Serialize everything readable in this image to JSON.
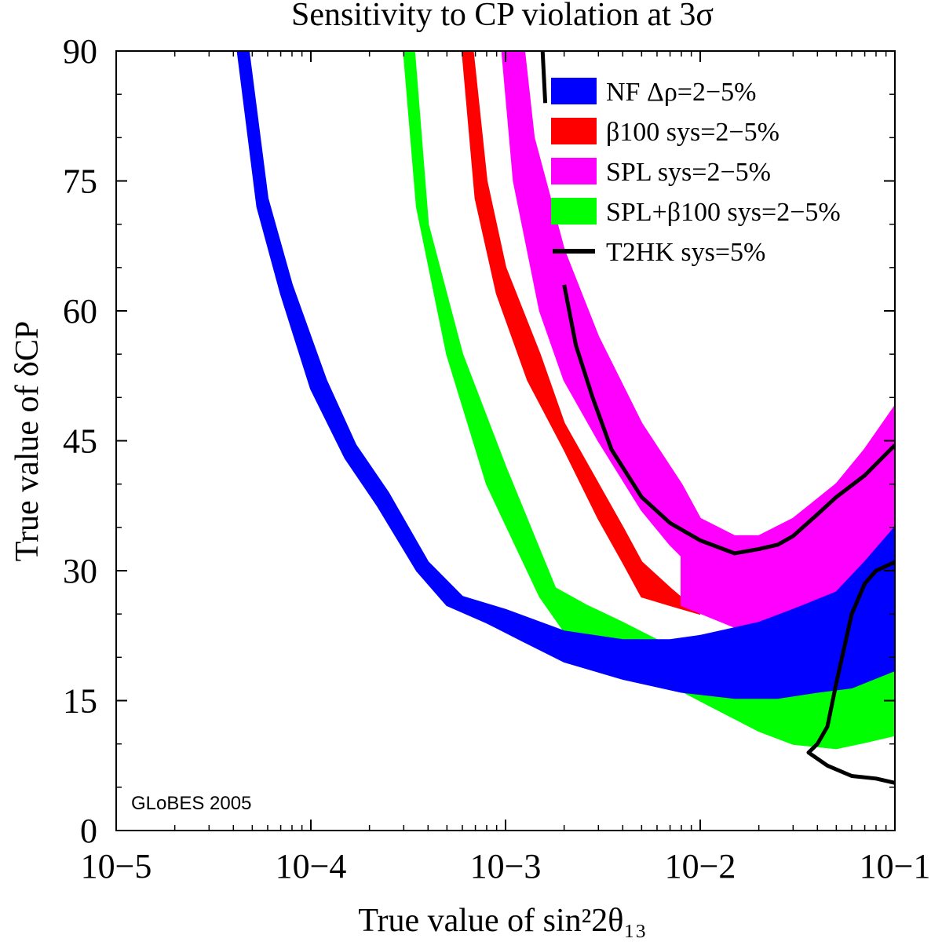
{
  "chart_data": {
    "type": "area",
    "title": "Sensitivity to CP violation at 3σ",
    "xlabel": "True value of sin²2θ₁₃",
    "ylabel": "True value of δCP",
    "x_scale": "log",
    "xlim": [
      1e-05,
      0.1
    ],
    "ylim": [
      0,
      90
    ],
    "x_ticks": [
      1e-05,
      0.0001,
      0.001,
      0.01,
      0.1
    ],
    "x_tick_labels": [
      "10−5",
      "10−4",
      "10−3",
      "10−2",
      "10−1"
    ],
    "y_ticks": [
      0,
      15,
      30,
      45,
      60,
      75,
      90
    ],
    "y_tick_labels": [
      "0",
      "15",
      "30",
      "45",
      "60",
      "75",
      "90"
    ],
    "grid": false,
    "legend_position": "top-right",
    "annotation": "GLoBES 2005",
    "series": [
      {
        "name": "SPL+β100 sys=2−5%",
        "color": "#00ff00",
        "style": "band",
        "upper": [
          [
            0.00034,
            90
          ],
          [
            0.0004,
            70
          ],
          [
            0.0006,
            55
          ],
          [
            0.001,
            42
          ],
          [
            0.0018,
            28
          ],
          [
            0.0026,
            26
          ],
          [
            0.004,
            24
          ],
          [
            0.006,
            22
          ],
          [
            0.008,
            20
          ]
        ],
        "lower": [
          [
            0.0003,
            90
          ],
          [
            0.00035,
            72
          ],
          [
            0.0005,
            55
          ],
          [
            0.0008,
            40
          ],
          [
            0.0015,
            27
          ],
          [
            0.002,
            23
          ],
          [
            0.003,
            20.5
          ],
          [
            0.005,
            18.5
          ],
          [
            0.01,
            15
          ],
          [
            0.02,
            11.5
          ],
          [
            0.03,
            10
          ],
          [
            0.05,
            9.5
          ],
          [
            0.07,
            10.2
          ],
          [
            0.1,
            11
          ]
        ],
        "upper_right": [
          [
            0.01,
            16.5
          ],
          [
            0.02,
            15.5
          ],
          [
            0.04,
            16
          ],
          [
            0.06,
            17
          ],
          [
            0.1,
            19
          ]
        ]
      },
      {
        "name": "β100 sys=2−5%",
        "color": "#ff0000",
        "style": "band",
        "upper": [
          [
            0.00068,
            90
          ],
          [
            0.0008,
            75
          ],
          [
            0.001,
            65
          ],
          [
            0.0015,
            55
          ],
          [
            0.002,
            47
          ],
          [
            0.003,
            40
          ],
          [
            0.004,
            35
          ],
          [
            0.005,
            31
          ],
          [
            0.007,
            28
          ]
        ],
        "lower": [
          [
            0.0006,
            90
          ],
          [
            0.0007,
            73
          ],
          [
            0.0009,
            62
          ],
          [
            0.0013,
            52
          ],
          [
            0.002,
            44
          ],
          [
            0.003,
            36
          ],
          [
            0.004,
            31
          ],
          [
            0.005,
            27
          ],
          [
            0.007,
            26
          ],
          [
            0.01,
            25
          ]
        ]
      },
      {
        "name": "SPL sys=2−5%",
        "color": "#ff00ff",
        "style": "band",
        "upper": [
          [
            0.00125,
            90
          ],
          [
            0.0014,
            80
          ],
          [
            0.002,
            67
          ],
          [
            0.003,
            57
          ],
          [
            0.005,
            47
          ],
          [
            0.008,
            40
          ],
          [
            0.01,
            36
          ],
          [
            0.015,
            34
          ],
          [
            0.02,
            34
          ],
          [
            0.03,
            36
          ],
          [
            0.05,
            40
          ],
          [
            0.07,
            44
          ],
          [
            0.1,
            49
          ]
        ],
        "lower": [
          [
            0.00096,
            90
          ],
          [
            0.0011,
            75
          ],
          [
            0.0015,
            60
          ],
          [
            0.002,
            52
          ],
          [
            0.003,
            45
          ],
          [
            0.005,
            37
          ],
          [
            0.007,
            33
          ],
          [
            0.01,
            29.5
          ],
          [
            0.015,
            28.8
          ],
          [
            0.02,
            29.5
          ],
          [
            0.03,
            32
          ],
          [
            0.05,
            37
          ],
          [
            0.07,
            40
          ],
          [
            0.1,
            42
          ]
        ],
        "lower_right": [
          [
            0.008,
            26
          ],
          [
            0.015,
            23.5
          ],
          [
            0.025,
            24.5
          ],
          [
            0.04,
            26
          ],
          [
            0.07,
            29
          ],
          [
            0.1,
            33
          ]
        ]
      },
      {
        "name": "NF Δρ=2−5%",
        "color": "#0000ff",
        "style": "band",
        "upper": [
          [
            4.8e-05,
            90
          ],
          [
            6e-05,
            73
          ],
          [
            8e-05,
            63
          ],
          [
            0.00012,
            52
          ],
          [
            0.00017,
            44.5
          ],
          [
            0.00025,
            39
          ],
          [
            0.0004,
            31
          ],
          [
            0.0006,
            27
          ],
          [
            0.001,
            25.5
          ],
          [
            0.002,
            23
          ],
          [
            0.004,
            22
          ],
          [
            0.007,
            22
          ],
          [
            0.01,
            22.5
          ],
          [
            0.02,
            24
          ],
          [
            0.03,
            25.5
          ],
          [
            0.05,
            27.5
          ],
          [
            0.07,
            31
          ],
          [
            0.1,
            35
          ]
        ],
        "lower": [
          [
            4.2e-05,
            90
          ],
          [
            5.3e-05,
            72
          ],
          [
            7e-05,
            62
          ],
          [
            0.0001,
            51
          ],
          [
            0.00015,
            43
          ],
          [
            0.00022,
            37.5
          ],
          [
            0.00035,
            30
          ],
          [
            0.0005,
            26
          ],
          [
            0.0008,
            24
          ],
          [
            0.0012,
            22
          ],
          [
            0.002,
            19.5
          ],
          [
            0.004,
            17.5
          ],
          [
            0.008,
            16
          ],
          [
            0.015,
            15.3
          ],
          [
            0.025,
            15.3
          ],
          [
            0.04,
            16
          ],
          [
            0.06,
            16.5
          ],
          [
            0.1,
            18.5
          ]
        ]
      },
      {
        "name": "T2HK sys=5%",
        "color": "#000000",
        "style": "line",
        "segments": [
          [
            [
              0.00155,
              90
            ],
            [
              0.0016,
              84
            ]
          ],
          [
            [
              0.002,
              63
            ],
            [
              0.0023,
              56
            ],
            [
              0.0028,
              50
            ],
            [
              0.0035,
              44
            ],
            [
              0.005,
              38.5
            ],
            [
              0.007,
              35.5
            ],
            [
              0.01,
              33.5
            ],
            [
              0.015,
              32
            ],
            [
              0.02,
              32.5
            ],
            [
              0.025,
              33
            ],
            [
              0.03,
              34
            ],
            [
              0.04,
              36.5
            ],
            [
              0.05,
              38.5
            ],
            [
              0.07,
              41
            ],
            [
              0.1,
              44.5
            ]
          ],
          [
            [
              0.1,
              5.5
            ],
            [
              0.08,
              6
            ],
            [
              0.06,
              6.3
            ],
            [
              0.045,
              7.5
            ],
            [
              0.036,
              9
            ],
            [
              0.04,
              10
            ],
            [
              0.045,
              12
            ],
            [
              0.05,
              17
            ],
            [
              0.06,
              25
            ],
            [
              0.07,
              28.5
            ],
            [
              0.08,
              30
            ],
            [
              0.1,
              31
            ]
          ]
        ]
      }
    ]
  }
}
